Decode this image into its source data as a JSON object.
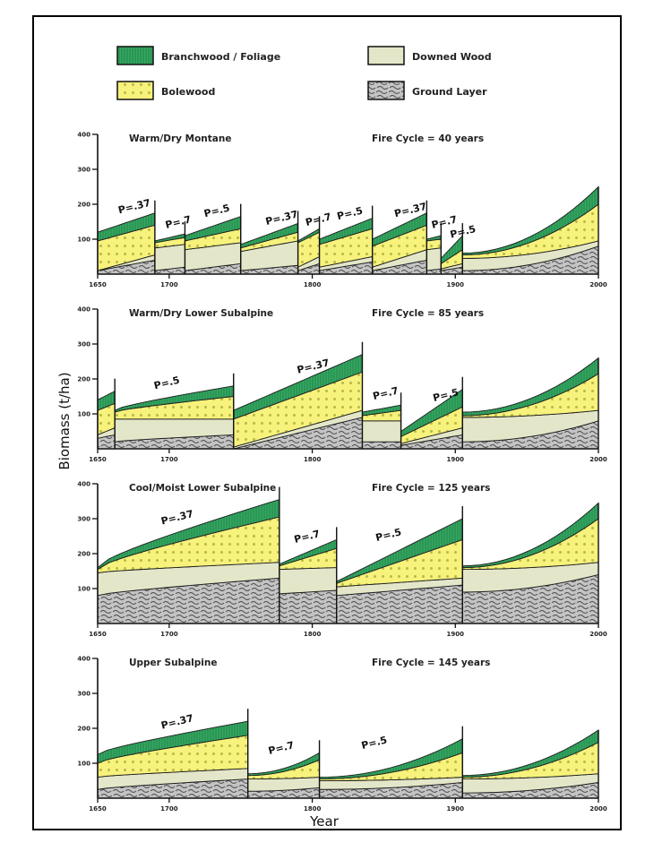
{
  "chart_data": {
    "type": "area",
    "title": "",
    "xlabel": "Year",
    "ylabel": "Biomass (t/ha)",
    "xlim": [
      1650,
      2000
    ],
    "ylim": [
      0,
      400
    ],
    "x_ticks": [
      "1650",
      "1700",
      "1800",
      "1900",
      "2000"
    ],
    "y_ticks": [
      "400",
      "300",
      "200",
      "100"
    ],
    "legend": {
      "placement": "top",
      "entries": [
        {
          "key": "branch",
          "label": "Branchwood / Foliage",
          "color": "#2f9e5a"
        },
        {
          "key": "downed",
          "label": "Downed Wood",
          "color": "#e3e6c8"
        },
        {
          "key": "bole",
          "label": "Bolewood",
          "color": "#f5f27a"
        },
        {
          "key": "ground",
          "label": "Ground Layer",
          "color": "#b9b9b9"
        }
      ]
    },
    "stack_order": [
      "ground",
      "downed",
      "bole",
      "branch"
    ],
    "panels": [
      {
        "name": "Warm / Dry Montane",
        "fire_cycle": "Fire Cycle = 40 years",
        "segments": [
          {
            "x": [
              1650,
              1690
            ],
            "ground": [
              10,
              40
            ],
            "downed": [
              10,
              55
            ],
            "bole": [
              95,
              140
            ],
            "branch": [
              120,
              175
            ],
            "label": "P=.37",
            "label_year": 1665
          },
          {
            "x": [
              1690,
              1711
            ],
            "ground": [
              10,
              20
            ],
            "downed": [
              75,
              85
            ],
            "bole": [
              90,
              105
            ],
            "branch": [
              95,
              115
            ],
            "label": "P=.7",
            "label_year": 1698
          },
          {
            "x": [
              1711,
              1750
            ],
            "ground": [
              10,
              30
            ],
            "downed": [
              70,
              90
            ],
            "bole": [
              95,
              130
            ],
            "branch": [
              110,
              165
            ],
            "label": "P=.5",
            "label_year": 1725
          },
          {
            "x": [
              1750,
              1790
            ],
            "ground": [
              10,
              25
            ],
            "downed": [
              65,
              95
            ],
            "bole": [
              75,
              120
            ],
            "branch": [
              85,
              145
            ],
            "label": "P=.37",
            "label_year": 1768
          },
          {
            "x": [
              1790,
              1805
            ],
            "ground": [
              10,
              30
            ],
            "downed": [
              20,
              50
            ],
            "bole": [
              90,
              120
            ],
            "branch": [
              95,
              130
            ],
            "label": "P=.7",
            "label_year": 1796
          },
          {
            "x": [
              1805,
              1842
            ],
            "ground": [
              10,
              35
            ],
            "downed": [
              20,
              50
            ],
            "bole": [
              85,
              130
            ],
            "branch": [
              100,
              160
            ],
            "label": "P=.5",
            "label_year": 1818
          },
          {
            "x": [
              1842,
              1880
            ],
            "ground": [
              10,
              40
            ],
            "downed": [
              20,
              70
            ],
            "bole": [
              80,
              140
            ],
            "branch": [
              100,
              175
            ],
            "label": "P=.37",
            "label_year": 1858
          },
          {
            "x": [
              1880,
              1890
            ],
            "ground": [
              10,
              15
            ],
            "downed": [
              70,
              75
            ],
            "bole": [
              95,
              100
            ],
            "branch": [
              100,
              110
            ],
            "label": "P=.7",
            "label_year": 1884
          },
          {
            "x": [
              1890,
              1905
            ],
            "ground": [
              10,
              20
            ],
            "downed": [
              15,
              30
            ],
            "bole": [
              30,
              70
            ],
            "branch": [
              45,
              110
            ],
            "label": "P=.5",
            "label_year": 1897
          },
          {
            "x": [
              1905,
              2000
            ],
            "ground": [
              10,
              80
            ],
            "downed": [
              45,
              95
            ],
            "bole": [
              55,
              200
            ],
            "branch": [
              60,
              250
            ],
            "curve": true
          }
        ]
      },
      {
        "name": "Warm / Dry Lower Subalpine",
        "fire_cycle": "Fire Cycle = 85 years",
        "segments": [
          {
            "x": [
              1650,
              1662
            ],
            "ground": [
              30,
              40
            ],
            "downed": [
              40,
              60
            ],
            "bole": [
              110,
              130
            ],
            "branch": [
              140,
              165
            ]
          },
          {
            "x": [
              1662,
              1745
            ],
            "ground": [
              20,
              40
            ],
            "downed": [
              85,
              85
            ],
            "bole": [
              105,
              150
            ],
            "branch": [
              110,
              180
            ],
            "label": "P=.5",
            "label_year": 1690,
            "curve": true
          },
          {
            "x": [
              1745,
              1835
            ],
            "ground": [
              0,
              90
            ],
            "downed": [
              5,
              110
            ],
            "bole": [
              85,
              220
            ],
            "branch": [
              110,
              270
            ],
            "label": "P=.37",
            "label_year": 1790
          },
          {
            "x": [
              1835,
              1862
            ],
            "ground": [
              20,
              20
            ],
            "downed": [
              80,
              80
            ],
            "bole": [
              95,
              110
            ],
            "branch": [
              105,
              125
            ],
            "label": "P=.7",
            "label_year": 1843
          },
          {
            "x": [
              1862,
              1905
            ],
            "ground": [
              10,
              40
            ],
            "downed": [
              15,
              60
            ],
            "bole": [
              35,
              120
            ],
            "branch": [
              50,
              170
            ],
            "label": "P=.5",
            "label_year": 1885
          },
          {
            "x": [
              1905,
              2000
            ],
            "ground": [
              20,
              80
            ],
            "downed": [
              90,
              110
            ],
            "bole": [
              95,
              215
            ],
            "branch": [
              105,
              260
            ],
            "curve": true
          }
        ]
      },
      {
        "name": "Cool / Moist Lower Subalpine",
        "fire_cycle": "Fire Cycle = 125 years",
        "segments": [
          {
            "x": [
              1650,
              1777
            ],
            "ground": [
              80,
              130
            ],
            "downed": [
              145,
              175
            ],
            "bole": [
              155,
              305
            ],
            "branch": [
              160,
              355
            ],
            "label": "P=.37",
            "label_year": 1695,
            "curve": true
          },
          {
            "x": [
              1777,
              1817
            ],
            "ground": [
              85,
              95
            ],
            "downed": [
              155,
              160
            ],
            "bole": [
              165,
              215
            ],
            "branch": [
              170,
              240
            ],
            "label": "P=.7",
            "label_year": 1788
          },
          {
            "x": [
              1817,
              1905
            ],
            "ground": [
              80,
              110
            ],
            "downed": [
              105,
              130
            ],
            "bole": [
              115,
              240
            ],
            "branch": [
              120,
              300
            ],
            "label": "P=.5",
            "label_year": 1845
          },
          {
            "x": [
              1905,
              2000
            ],
            "ground": [
              90,
              140
            ],
            "downed": [
              155,
              175
            ],
            "bole": [
              160,
              300
            ],
            "branch": [
              165,
              345
            ],
            "curve": true
          }
        ]
      },
      {
        "name": "Upper Subalpine",
        "fire_cycle": "Fire Cycle = 145 years",
        "segments": [
          {
            "x": [
              1650,
              1755
            ],
            "ground": [
              25,
              55
            ],
            "downed": [
              60,
              85
            ],
            "bole": [
              100,
              180
            ],
            "branch": [
              125,
              220
            ],
            "label": "P=.37",
            "label_year": 1695,
            "curve": true
          },
          {
            "x": [
              1755,
              1805
            ],
            "ground": [
              20,
              30
            ],
            "downed": [
              55,
              60
            ],
            "bole": [
              65,
              110
            ],
            "branch": [
              70,
              130
            ],
            "label": "P=.7",
            "label_year": 1770,
            "curve": true
          },
          {
            "x": [
              1805,
              1905
            ],
            "ground": [
              25,
              45
            ],
            "downed": [
              50,
              60
            ],
            "bole": [
              55,
              130
            ],
            "branch": [
              60,
              170
            ],
            "label": "P=.5",
            "label_year": 1835,
            "curve": true
          },
          {
            "x": [
              1905,
              2000
            ],
            "ground": [
              15,
              45
            ],
            "downed": [
              55,
              70
            ],
            "bole": [
              60,
              160
            ],
            "branch": [
              65,
              195
            ],
            "curve": true
          }
        ]
      }
    ]
  }
}
